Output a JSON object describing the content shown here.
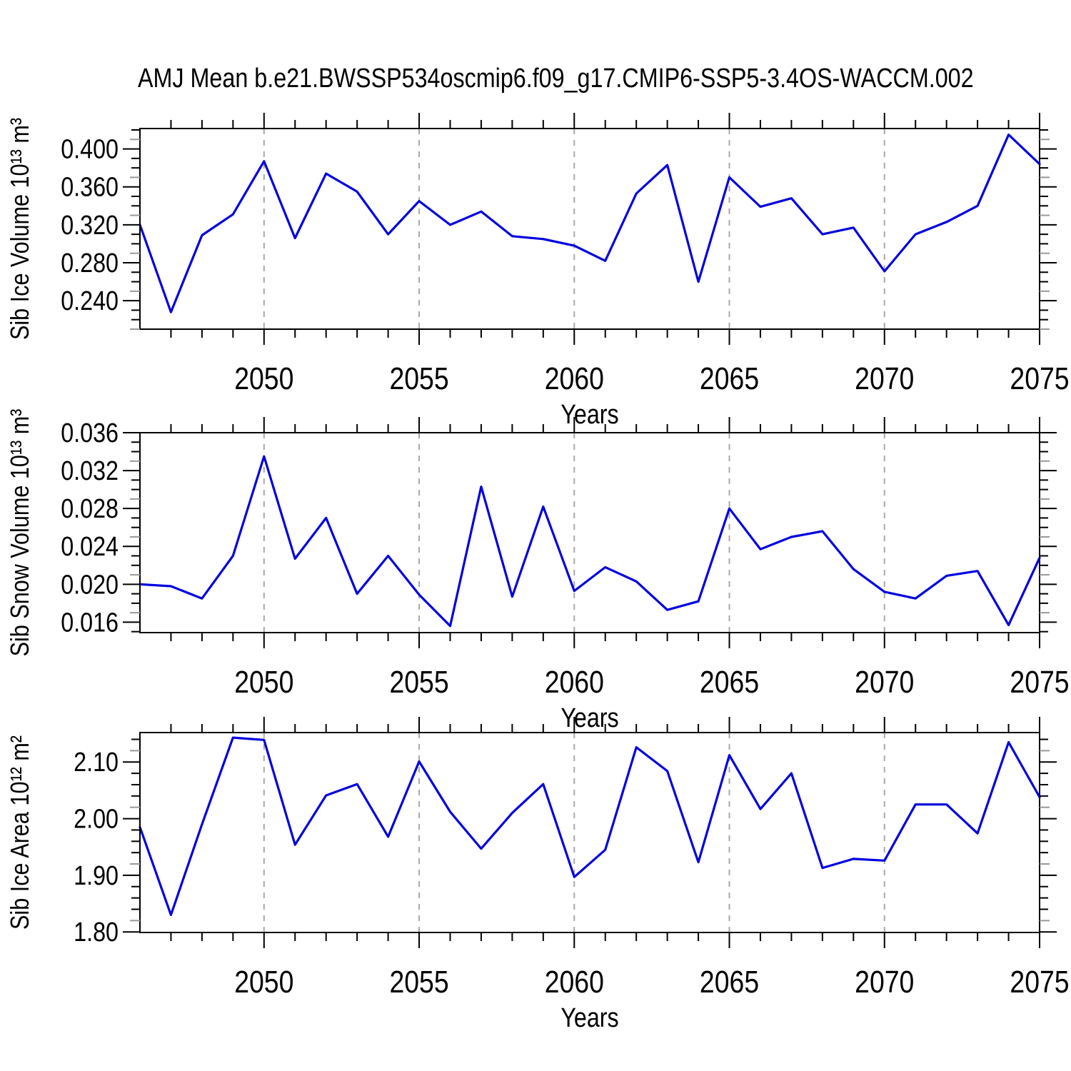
{
  "title": "AMJ Mean b.e21.BWSSP534oscmip6.f09_g17.CMIP6-SSP5-3.4OS-WACCM.002",
  "colors": {
    "line": "#0000e1",
    "grid": "#a9a9a9",
    "axis": "#000000",
    "tick_mid": "#999999"
  },
  "x_axis": {
    "label": "Years",
    "range": [
      2046,
      2075
    ],
    "ticks": [
      2050,
      2055,
      2060,
      2065,
      2070,
      2075
    ],
    "gridlines": [
      2050,
      2055,
      2060,
      2065,
      2070
    ]
  },
  "chart_data": [
    {
      "type": "line",
      "ylabel": "Sib Ice Volume 10¹³ m³",
      "ylim": [
        0.21,
        0.4215
      ],
      "yticks_major": [
        0.24,
        0.28,
        0.32,
        0.36,
        0.4
      ],
      "ytick_major_step": 0.04,
      "ytick_minor_step": 0.01,
      "ytick_decimals": 3,
      "x": [
        2046,
        2047,
        2048,
        2049,
        2050,
        2051,
        2052,
        2053,
        2054,
        2055,
        2056,
        2057,
        2058,
        2059,
        2060,
        2061,
        2062,
        2063,
        2064,
        2065,
        2066,
        2067,
        2068,
        2069,
        2070,
        2071,
        2072,
        2073,
        2074,
        2075
      ],
      "values": [
        0.32,
        0.228,
        0.309,
        0.331,
        0.387,
        0.306,
        0.374,
        0.355,
        0.31,
        0.345,
        0.32,
        0.334,
        0.308,
        0.305,
        0.298,
        0.282,
        0.353,
        0.383,
        0.26,
        0.37,
        0.339,
        0.348,
        0.31,
        0.317,
        0.271,
        0.31,
        0.323,
        0.34,
        0.415,
        0.384
      ]
    },
    {
      "type": "line",
      "ylabel": "Sib Snow Volume 10¹³ m³",
      "ylim": [
        0.0149,
        0.036
      ],
      "yticks_major": [
        0.016,
        0.02,
        0.024,
        0.028,
        0.032,
        0.036
      ],
      "ytick_major_step": 0.004,
      "ytick_minor_step": 0.001,
      "ytick_decimals": 3,
      "x": [
        2046,
        2047,
        2048,
        2049,
        2050,
        2051,
        2052,
        2053,
        2054,
        2055,
        2056,
        2057,
        2058,
        2059,
        2060,
        2061,
        2062,
        2063,
        2064,
        2065,
        2066,
        2067,
        2068,
        2069,
        2070,
        2071,
        2072,
        2073,
        2074,
        2075
      ],
      "values": [
        0.02,
        0.0198,
        0.0185,
        0.023,
        0.0335,
        0.0227,
        0.027,
        0.019,
        0.023,
        0.0189,
        0.0156,
        0.0303,
        0.0187,
        0.0282,
        0.0193,
        0.0218,
        0.0203,
        0.0173,
        0.0182,
        0.028,
        0.0237,
        0.025,
        0.0256,
        0.0216,
        0.0192,
        0.0185,
        0.0209,
        0.0214,
        0.0157,
        0.0228
      ]
    },
    {
      "type": "line",
      "ylabel": "Sib Ice Area 10¹² m²",
      "ylim": [
        1.799,
        2.152
      ],
      "yticks_major": [
        1.8,
        1.9,
        2.0,
        2.1
      ],
      "ytick_major_step": 0.1,
      "ytick_minor_step": 0.02,
      "ytick_decimals": 2,
      "x": [
        2046,
        2047,
        2048,
        2049,
        2050,
        2051,
        2052,
        2053,
        2054,
        2055,
        2056,
        2057,
        2058,
        2059,
        2060,
        2061,
        2062,
        2063,
        2064,
        2065,
        2066,
        2067,
        2068,
        2069,
        2070,
        2071,
        2072,
        2073,
        2074,
        2075
      ],
      "values": [
        1.985,
        1.83,
        1.99,
        2.143,
        2.139,
        1.954,
        2.041,
        2.061,
        1.968,
        2.101,
        2.012,
        1.947,
        2.01,
        2.061,
        1.897,
        1.945,
        2.126,
        2.084,
        1.923,
        2.112,
        2.017,
        2.08,
        1.913,
        1.929,
        1.926,
        2.025,
        2.025,
        1.974,
        2.135,
        2.038
      ]
    }
  ]
}
